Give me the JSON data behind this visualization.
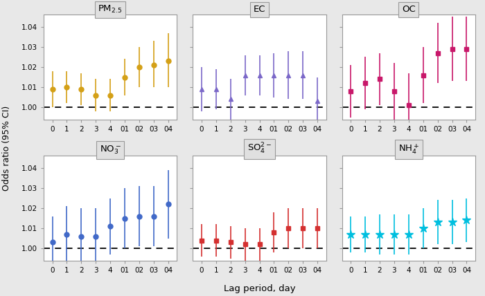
{
  "subplots": [
    {
      "title": "PM$_{2.5}$",
      "color": "#D4A017",
      "marker": "o",
      "x_labels": [
        "0",
        "1",
        "2",
        "3",
        "4",
        "01",
        "02",
        "03",
        "04"
      ],
      "y": [
        1.009,
        1.01,
        1.009,
        1.006,
        1.006,
        1.015,
        1.02,
        1.021,
        1.023
      ],
      "y_lo": [
        1.0,
        1.002,
        1.001,
        0.998,
        0.998,
        1.006,
        1.01,
        1.01,
        1.01
      ],
      "y_hi": [
        1.018,
        1.018,
        1.017,
        1.014,
        1.014,
        1.024,
        1.03,
        1.033,
        1.037
      ]
    },
    {
      "title": "EC",
      "color": "#7B68C8",
      "marker": "^",
      "x_labels": [
        "0",
        "1",
        "2",
        "3",
        "4",
        "01",
        "02",
        "03",
        "04"
      ],
      "y": [
        1.009,
        1.009,
        1.004,
        1.016,
        1.016,
        1.016,
        1.016,
        1.016,
        1.003
      ],
      "y_lo": [
        0.998,
        0.999,
        0.994,
        1.006,
        1.006,
        1.005,
        1.004,
        1.004,
        0.991
      ],
      "y_hi": [
        1.02,
        1.019,
        1.014,
        1.026,
        1.026,
        1.027,
        1.028,
        1.028,
        1.015
      ]
    },
    {
      "title": "OC",
      "color": "#C8186A",
      "marker": "s",
      "x_labels": [
        "0",
        "1",
        "2",
        "3",
        "4",
        "01",
        "02",
        "03",
        "04"
      ],
      "y": [
        1.008,
        1.012,
        1.014,
        1.008,
        1.001,
        1.016,
        1.027,
        1.029,
        1.029
      ],
      "y_lo": [
        0.995,
        0.999,
        1.001,
        0.994,
        0.985,
        1.002,
        1.012,
        1.013,
        1.013
      ],
      "y_hi": [
        1.021,
        1.025,
        1.027,
        1.022,
        1.017,
        1.03,
        1.042,
        1.045,
        1.045
      ]
    },
    {
      "title": "NO$_3^-$",
      "color": "#4169C8",
      "marker": "o",
      "x_labels": [
        "0",
        "1",
        "2",
        "3",
        "4",
        "01",
        "02",
        "03",
        "04"
      ],
      "y": [
        1.003,
        1.007,
        1.006,
        1.006,
        1.011,
        1.015,
        1.016,
        1.016,
        1.022
      ],
      "y_lo": [
        0.99,
        0.993,
        0.992,
        0.992,
        0.997,
        1.0,
        1.001,
        1.001,
        1.005
      ],
      "y_hi": [
        1.016,
        1.021,
        1.02,
        1.02,
        1.025,
        1.03,
        1.031,
        1.031,
        1.039
      ]
    },
    {
      "title": "SO$_4^{2-}$",
      "color": "#D43030",
      "marker": "s",
      "x_labels": [
        "0",
        "1",
        "2",
        "3",
        "4",
        "01",
        "02",
        "03",
        "04"
      ],
      "y": [
        1.004,
        1.004,
        1.003,
        1.002,
        1.002,
        1.008,
        1.01,
        1.01,
        1.01
      ],
      "y_lo": [
        0.996,
        0.996,
        0.995,
        0.994,
        0.994,
        0.998,
        1.0,
        1.0,
        1.0
      ],
      "y_hi": [
        1.012,
        1.012,
        1.011,
        1.01,
        1.01,
        1.018,
        1.02,
        1.02,
        1.02
      ]
    },
    {
      "title": "NH$_4^+$",
      "color": "#00BFDF",
      "marker": "*",
      "x_labels": [
        "0",
        "1",
        "2",
        "3",
        "4",
        "01",
        "02",
        "03",
        "04"
      ],
      "y": [
        1.007,
        1.007,
        1.007,
        1.007,
        1.007,
        1.01,
        1.013,
        1.013,
        1.014
      ],
      "y_lo": [
        0.998,
        0.998,
        0.997,
        0.997,
        0.997,
        1.0,
        1.002,
        1.002,
        1.003
      ],
      "y_hi": [
        1.016,
        1.016,
        1.017,
        1.017,
        1.017,
        1.02,
        1.024,
        1.024,
        1.025
      ]
    }
  ],
  "ylim": [
    0.994,
    1.046
  ],
  "yticks": [
    1.0,
    1.01,
    1.02,
    1.03,
    1.04
  ],
  "xlabel": "Lag period, day",
  "ylabel": "Odds ratio (95% CI)",
  "ref_line": 1.0,
  "background_color": "#e8e8e8",
  "panel_bg": "#ffffff",
  "title_bg": "#e0e0e0"
}
